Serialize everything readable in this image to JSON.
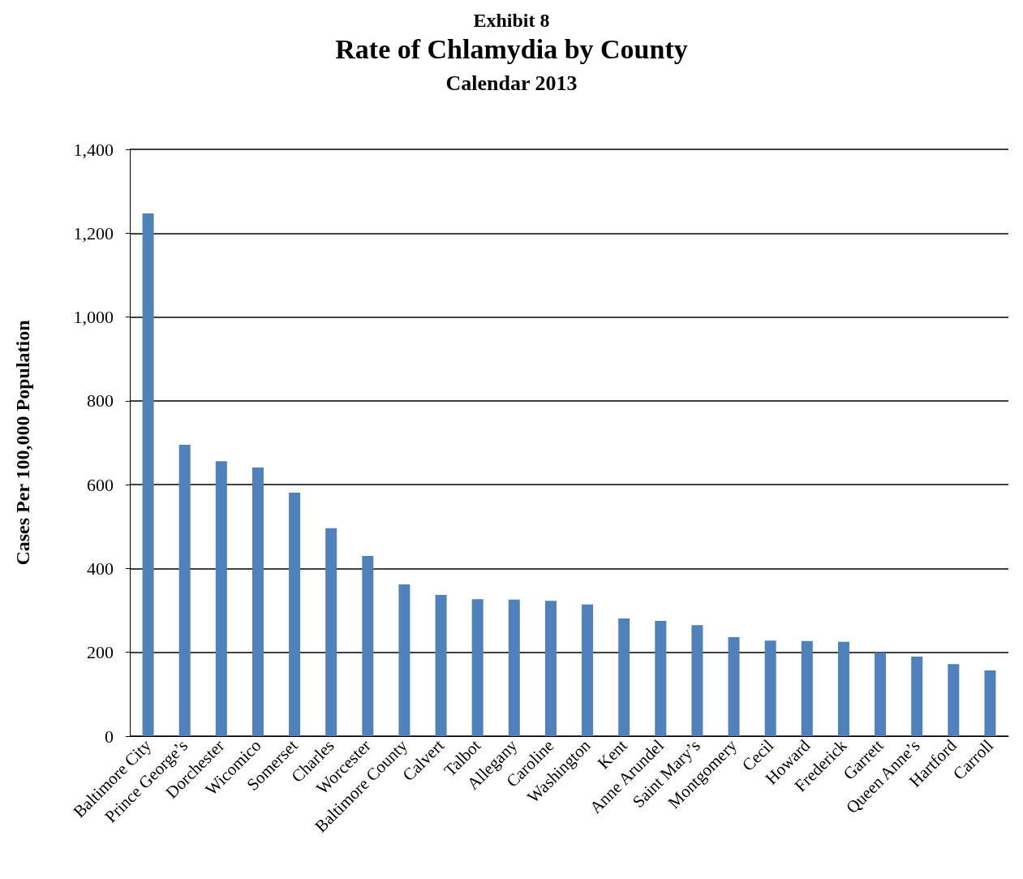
{
  "chart_data": {
    "type": "bar",
    "annotations": [
      "Exhibit 8"
    ],
    "title": "Rate of Chlamydia by County",
    "subtitle": "Calendar 2013",
    "ylabel": "Cases Per 100,000 Population",
    "categories": [
      "Baltimore City",
      "Prince George’s",
      "Dorchester",
      "Wicomico",
      "Somerset",
      "Charles",
      "Worcester",
      "Baltimore County",
      "Calvert",
      "Talbot",
      "Allegany",
      "Caroline",
      "Washington",
      "Kent",
      "Anne Arundel",
      "Saint Mary’s",
      "Montgomery",
      "Cecil",
      "Howard",
      "Frederick",
      "Garrett",
      "Queen Anne’s",
      "Hartford",
      "Carroll"
    ],
    "values": [
      1247,
      695,
      656,
      641,
      581,
      496,
      430,
      362,
      337,
      327,
      326,
      323,
      314,
      281,
      275,
      265,
      236,
      228,
      227,
      225,
      199,
      190,
      172,
      157
    ],
    "color": "#4f81bd",
    "ylim": [
      0,
      1400
    ],
    "yticks": [
      0,
      200,
      400,
      600,
      800,
      {
        "value": 1000,
        "label": "1,000"
      },
      {
        "value": 1200,
        "label": "1,200"
      },
      {
        "value": 1400,
        "label": "1,400"
      }
    ],
    "grid": "y"
  }
}
